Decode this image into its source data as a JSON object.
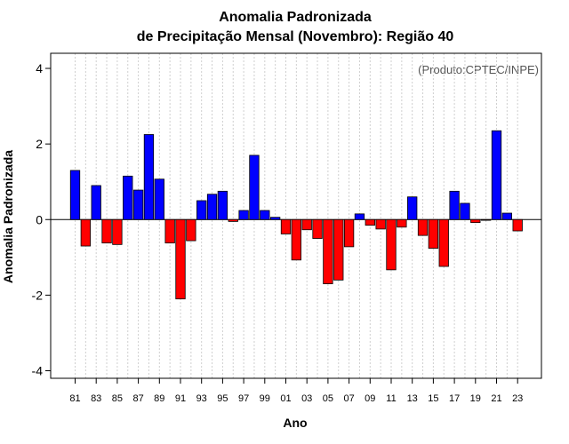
{
  "chart_data": {
    "type": "bar",
    "title_line1": "Anomalia Padronizada",
    "title_line2": "de Precipitação Mensal (Novembro): Região 40",
    "xlabel": "Ano",
    "ylabel": "Anomalia Padronizada",
    "credit": "(Produto:CPTEC/INPE)",
    "ylim": [
      -4.2,
      4.4
    ],
    "yticks": [
      -4,
      -2,
      0,
      2,
      4
    ],
    "ytick_labels": [
      "-4",
      "-2",
      "0",
      "2",
      "4"
    ],
    "positive_color": "#0000ff",
    "negative_color": "#ff0000",
    "categories": [
      "1981",
      "1982",
      "1983",
      "1984",
      "1985",
      "1986",
      "1987",
      "1988",
      "1989",
      "1990",
      "1991",
      "1992",
      "1993",
      "1994",
      "1995",
      "1996",
      "1997",
      "1998",
      "1999",
      "2000",
      "2001",
      "2002",
      "2003",
      "2004",
      "2005",
      "2006",
      "2007",
      "2008",
      "2009",
      "2010",
      "2011",
      "2012",
      "2013",
      "2014",
      "2015",
      "2016",
      "2017",
      "2018",
      "2019",
      "2020",
      "2021",
      "2022",
      "2023"
    ],
    "values": [
      1.3,
      -0.7,
      0.9,
      -0.62,
      -0.66,
      1.15,
      0.78,
      2.25,
      1.07,
      -0.62,
      -2.1,
      -0.56,
      0.5,
      0.67,
      0.75,
      -0.05,
      0.24,
      1.7,
      0.24,
      0.06,
      -0.38,
      -1.07,
      -0.27,
      -0.5,
      -1.7,
      -1.6,
      -0.72,
      0.15,
      -0.15,
      -0.25,
      -1.33,
      -0.2,
      0.6,
      -0.42,
      -0.76,
      -1.24,
      0.75,
      0.43,
      -0.08,
      -0.02,
      2.35,
      0.17,
      -0.3
    ],
    "xtick_labels": [
      "81",
      "83",
      "85",
      "87",
      "89",
      "91",
      "93",
      "95",
      "97",
      "99",
      "01",
      "03",
      "05",
      "07",
      "09",
      "11",
      "13",
      "15",
      "17",
      "19",
      "21",
      "23"
    ],
    "xtick_indices": [
      0,
      2,
      4,
      6,
      8,
      10,
      12,
      14,
      16,
      18,
      20,
      22,
      24,
      26,
      28,
      30,
      32,
      34,
      36,
      38,
      40,
      42
    ]
  }
}
